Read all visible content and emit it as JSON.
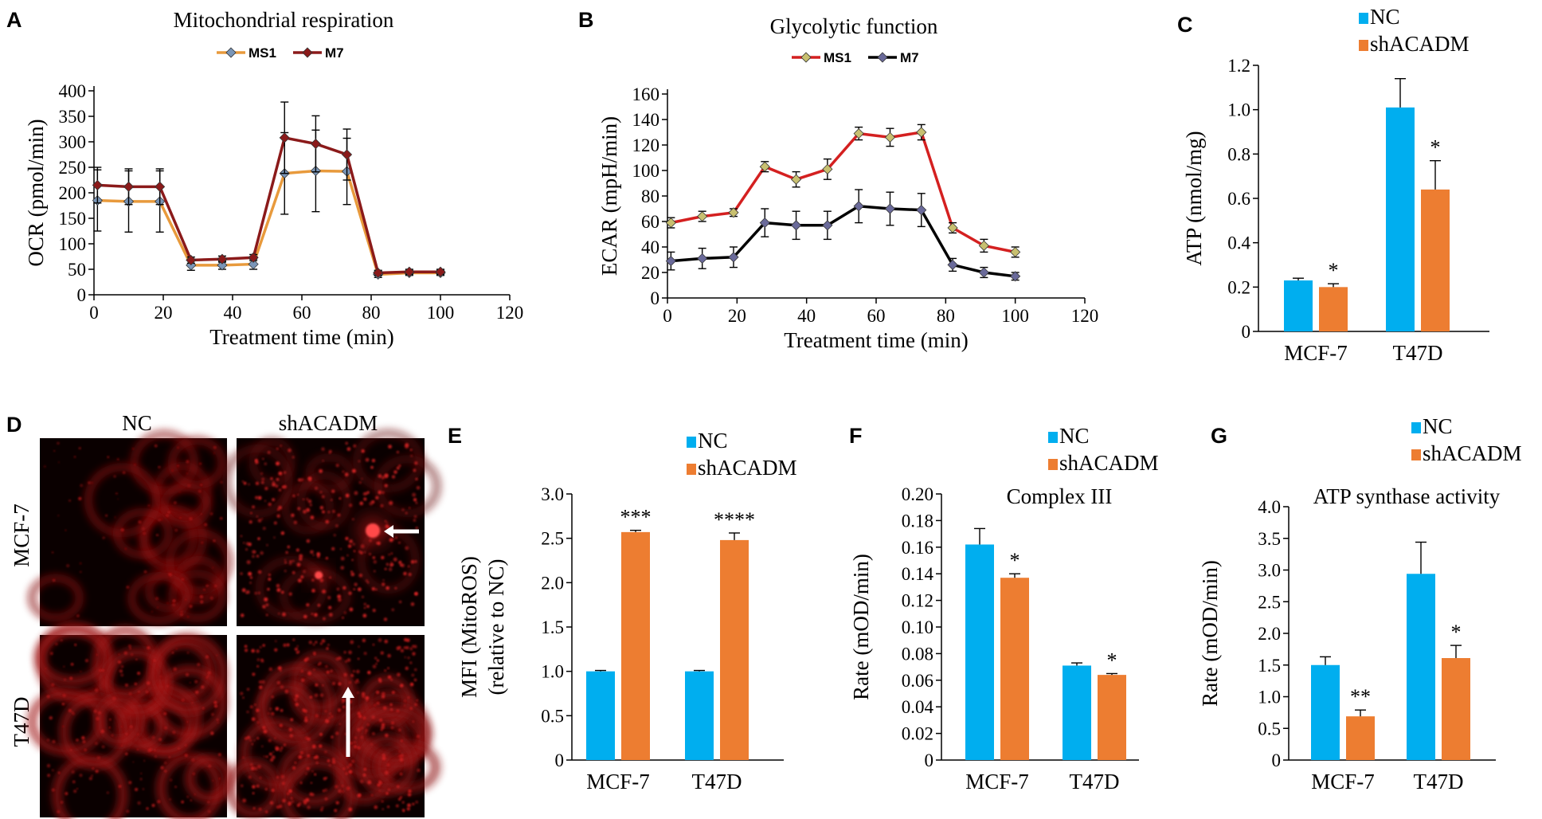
{
  "chart_data": [
    {
      "panel": "A",
      "type": "line",
      "title": "Mitochondrial respiration",
      "xlabel": "Treatment time (min)",
      "ylabel": "OCR (pmol/min)",
      "xlim": [
        0,
        120
      ],
      "ylim": [
        0,
        400
      ],
      "xticks": [
        0,
        20,
        40,
        60,
        80,
        100,
        120
      ],
      "yticks": [
        0,
        50,
        100,
        150,
        200,
        250,
        300,
        350,
        400
      ],
      "legend": "top-center",
      "x": [
        1,
        10,
        19,
        28,
        37,
        46,
        55,
        64,
        73,
        82,
        91,
        100
      ],
      "series": [
        {
          "name": "MS1",
          "color": "#E89A3C",
          "marker_color": "#7A96B8",
          "values": [
            185,
            183,
            183,
            58,
            58,
            60,
            238,
            243,
            242,
            40,
            43,
            43
          ],
          "errors": [
            60,
            60,
            60,
            10,
            8,
            10,
            80,
            80,
            65,
            6,
            5,
            5
          ]
        },
        {
          "name": "M7",
          "color": "#8B1A1A",
          "marker_color": "#8B1A1A",
          "values": [
            215,
            212,
            212,
            68,
            70,
            73,
            308,
            296,
            275,
            43,
            45,
            45
          ],
          "errors": [
            35,
            35,
            35,
            6,
            6,
            6,
            70,
            55,
            50,
            5,
            5,
            5
          ]
        }
      ]
    },
    {
      "panel": "B",
      "type": "line",
      "title": "Glycolytic function",
      "xlabel": "Treatment time (min)",
      "ylabel": "ECAR (mpH/min)",
      "xlim": [
        0,
        120
      ],
      "ylim": [
        0,
        160
      ],
      "xticks": [
        0,
        20,
        40,
        60,
        80,
        100,
        120
      ],
      "yticks": [
        0,
        20,
        40,
        60,
        80,
        100,
        120,
        140,
        160
      ],
      "legend": "top-center",
      "x": [
        1,
        10,
        19,
        28,
        37,
        46,
        55,
        64,
        73,
        82,
        91,
        100
      ],
      "series": [
        {
          "name": "MS1",
          "color": "#D42020",
          "marker_color": "#C8C070",
          "values": [
            59,
            64,
            67,
            103,
            93,
            101,
            129,
            126,
            130,
            55,
            41,
            36
          ],
          "errors": [
            4,
            4,
            3,
            4,
            6,
            8,
            5,
            7,
            6,
            4,
            5,
            4
          ]
        },
        {
          "name": "M7",
          "color": "#000000",
          "marker_color": "#6A6A9A",
          "values": [
            29,
            31,
            32,
            59,
            57,
            57,
            72,
            70,
            69,
            26,
            20,
            17
          ],
          "errors": [
            7,
            8,
            8,
            11,
            11,
            11,
            13,
            13,
            13,
            5,
            4,
            3
          ]
        }
      ]
    },
    {
      "panel": "C",
      "type": "bar",
      "title": "",
      "xlabel": "",
      "ylabel": "ATP (nmol/mg)",
      "ylim": [
        0,
        1.2
      ],
      "yticks": [
        "0",
        "0.2",
        "0.4",
        "0.6",
        "0.8",
        "1.0",
        "1.2"
      ],
      "categories": [
        "MCF-7",
        "T47D"
      ],
      "legend": "top-right",
      "series": [
        {
          "name": "NC",
          "color": "#00AEEF",
          "values": [
            0.23,
            1.01
          ],
          "errors": [
            0.01,
            0.13
          ],
          "sig": [
            "",
            ""
          ]
        },
        {
          "name": "shACADM",
          "color": "#ED7D31",
          "values": [
            0.2,
            0.64
          ],
          "errors": [
            0.015,
            0.13
          ],
          "sig": [
            "*",
            "*"
          ]
        }
      ]
    },
    {
      "panel": "E",
      "type": "bar",
      "title": "",
      "xlabel": "",
      "ylabel": "MFI (MitoROS)",
      "ylabel2": "(relative to NC)",
      "ylim": [
        0,
        3.0
      ],
      "yticks": [
        "0",
        "0.5",
        "1.0",
        "1.5",
        "2.0",
        "2.5",
        "3.0"
      ],
      "categories": [
        "MCF-7",
        "T47D"
      ],
      "legend": "top-center",
      "series": [
        {
          "name": "NC",
          "color": "#00AEEF",
          "values": [
            1.0,
            1.0
          ],
          "errors": [
            0.01,
            0.01
          ],
          "sig": [
            "",
            ""
          ]
        },
        {
          "name": "shACADM",
          "color": "#ED7D31",
          "values": [
            2.57,
            2.48
          ],
          "errors": [
            0.02,
            0.08
          ],
          "sig": [
            "***",
            "****"
          ]
        }
      ]
    },
    {
      "panel": "F",
      "type": "bar",
      "title": "Complex III",
      "xlabel": "",
      "ylabel": "Rate (mOD/min)",
      "ylim": [
        0,
        0.2
      ],
      "yticks": [
        "0",
        "0.02",
        "0.04",
        "0.06",
        "0.08",
        "0.10",
        "0.12",
        "0.14",
        "0.16",
        "0.18",
        "0.20"
      ],
      "categories": [
        "MCF-7",
        "T47D"
      ],
      "legend": "top-center",
      "series": [
        {
          "name": "NC",
          "color": "#00AEEF",
          "values": [
            0.162,
            0.071
          ],
          "errors": [
            0.012,
            0.002
          ],
          "sig": [
            "",
            ""
          ]
        },
        {
          "name": "shACADM",
          "color": "#ED7D31",
          "values": [
            0.137,
            0.064
          ],
          "errors": [
            0.003,
            0.001
          ],
          "sig": [
            "*",
            "*"
          ]
        }
      ]
    },
    {
      "panel": "G",
      "type": "bar",
      "title": "ATP synthase activity",
      "xlabel": "",
      "ylabel": "Rate (mOD/min)",
      "ylim": [
        0,
        4.0
      ],
      "yticks": [
        "0",
        "0.5",
        "1.0",
        "1.5",
        "2.0",
        "2.5",
        "3.0",
        "3.5",
        "4.0"
      ],
      "categories": [
        "MCF-7",
        "T47D"
      ],
      "legend": "top-center",
      "series": [
        {
          "name": "NC",
          "color": "#00AEEF",
          "values": [
            1.5,
            2.94
          ],
          "errors": [
            0.13,
            0.5
          ],
          "sig": [
            "",
            ""
          ]
        },
        {
          "name": "shACADM",
          "color": "#ED7D31",
          "values": [
            0.69,
            1.61
          ],
          "errors": [
            0.1,
            0.2
          ],
          "sig": [
            "**",
            "*"
          ]
        }
      ]
    }
  ],
  "panel_d": {
    "letter": "D",
    "col_labels": [
      "NC",
      "shACADM"
    ],
    "row_labels": [
      "MCF-7",
      "T47D"
    ]
  }
}
